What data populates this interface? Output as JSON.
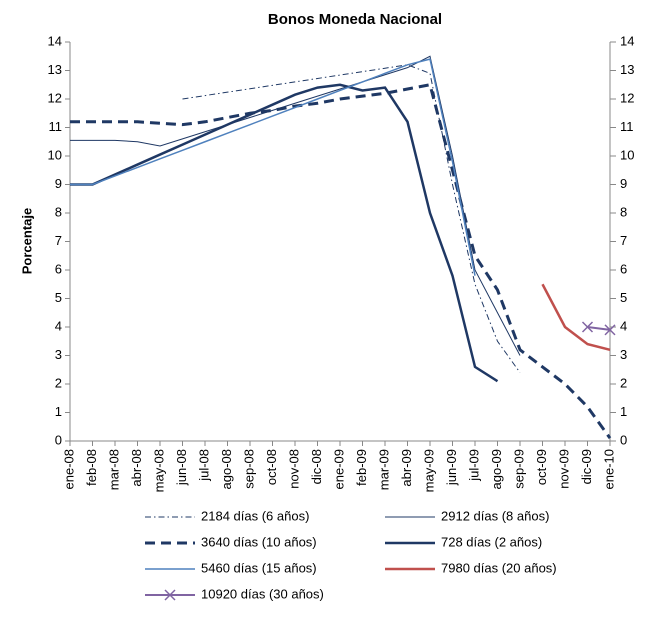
{
  "chart_data": {
    "type": "line",
    "title": "Bonos Moneda Nacional",
    "y_label": "Porcentaje",
    "categories": [
      "ene-08",
      "feb-08",
      "mar-08",
      "abr-08",
      "may-08",
      "jun-08",
      "jul-08",
      "ago-08",
      "sep-08",
      "oct-08",
      "nov-08",
      "dic-08",
      "ene-09",
      "feb-09",
      "mar-09",
      "abr-09",
      "may-09",
      "jun-09",
      "jul-09",
      "ago-09",
      "sep-09",
      "oct-09",
      "nov-09",
      "dic-09",
      "ene-10"
    ],
    "ylim": [
      0,
      14
    ],
    "yticks": [
      0,
      1,
      2,
      3,
      4,
      5,
      6,
      7,
      8,
      9,
      10,
      11,
      12,
      13,
      14
    ],
    "y2lim": [
      0,
      14
    ],
    "y2ticks": [
      0,
      1,
      2,
      3,
      4,
      5,
      6,
      7,
      8,
      9,
      10,
      11,
      12,
      13,
      14
    ],
    "series": [
      {
        "name": "2184 días (6 años)",
        "color": "#1f3864",
        "dash": "dashdot",
        "width": 1,
        "values": [
          null,
          null,
          null,
          null,
          null,
          12.0,
          12.12,
          12.24,
          12.36,
          12.48,
          12.6,
          12.72,
          12.84,
          12.96,
          13.08,
          13.2,
          12.9,
          9.0,
          5.5,
          3.5,
          2.4,
          null,
          null,
          null,
          null
        ]
      },
      {
        "name": "2912 días (8 años)",
        "color": "#1f3864",
        "dash": "solid",
        "width": 1,
        "values": [
          10.55,
          10.55,
          10.55,
          10.5,
          10.35,
          10.6,
          10.85,
          11.1,
          11.35,
          11.6,
          11.85,
          12.1,
          12.35,
          12.6,
          12.85,
          13.1,
          13.5,
          10.0,
          6.0,
          4.5,
          3.0,
          null,
          null,
          null,
          null
        ]
      },
      {
        "name": "3640 días (10 años)",
        "color": "#1f3864",
        "dash": "dash",
        "width": 3,
        "values": [
          11.2,
          11.2,
          11.2,
          11.2,
          11.15,
          11.1,
          11.2,
          11.35,
          11.5,
          11.6,
          11.75,
          11.85,
          12.0,
          12.1,
          12.2,
          12.35,
          12.5,
          9.5,
          6.5,
          5.3,
          3.2,
          2.6,
          2.0,
          1.2,
          0.1
        ]
      },
      {
        "name": "728 días (2 años)",
        "color": "#1f3864",
        "dash": "solid",
        "width": 2.5,
        "values": [
          9.0,
          9.0,
          9.35,
          9.7,
          10.05,
          10.4,
          10.75,
          11.1,
          11.45,
          11.8,
          12.15,
          12.4,
          12.5,
          12.3,
          12.4,
          11.2,
          8.0,
          5.8,
          2.6,
          2.1,
          null,
          null,
          null,
          null,
          null
        ]
      },
      {
        "name": "5460 días (15 años)",
        "color": "#4f81bd",
        "dash": "solid",
        "width": 1.5,
        "values": [
          9.0,
          9.0,
          9.3,
          9.6,
          9.9,
          10.2,
          10.5,
          10.8,
          11.1,
          11.4,
          11.7,
          12.0,
          12.3,
          12.6,
          12.9,
          13.2,
          13.4,
          9.8,
          5.8,
          null,
          null,
          null,
          null,
          null,
          null
        ]
      },
      {
        "name": "7980 días (20 años)",
        "color": "#c0504d",
        "dash": "solid",
        "width": 2.5,
        "values": [
          null,
          null,
          null,
          null,
          null,
          null,
          null,
          null,
          null,
          null,
          null,
          null,
          null,
          null,
          null,
          null,
          null,
          null,
          null,
          null,
          null,
          5.5,
          4.0,
          3.4,
          3.2
        ]
      },
      {
        "name": "10920 días (30 años)",
        "color": "#8064a2",
        "dash": "solid",
        "width": 2,
        "marker": "x",
        "values": [
          null,
          null,
          null,
          null,
          null,
          null,
          null,
          null,
          null,
          null,
          null,
          null,
          null,
          null,
          null,
          null,
          null,
          null,
          null,
          null,
          null,
          null,
          null,
          4.0,
          3.9
        ]
      }
    ]
  }
}
